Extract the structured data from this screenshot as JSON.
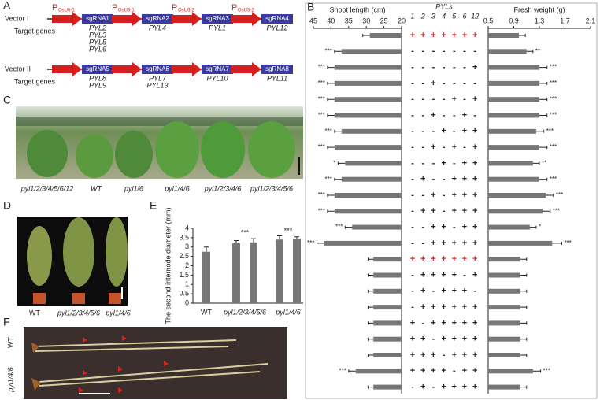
{
  "panel_labels": [
    "A",
    "B",
    "C",
    "D",
    "E",
    "F"
  ],
  "panel_a": {
    "promoter_letter": "P",
    "target_label": "Target genes",
    "vectors": [
      {
        "name": "Vector I",
        "promoters": [
          "OsU6-1",
          "OsU3-1",
          "OsU6-2",
          "OsU3-2"
        ],
        "sgrnas": [
          "sgRNA1",
          "sgRNA2",
          "sgRNA3",
          "sgRNA4"
        ],
        "targets": [
          [
            "PYL2",
            "PYL3",
            "PYL5",
            "PYL6"
          ],
          [
            "PYL4"
          ],
          [
            "PYL1"
          ],
          [
            "PYL12"
          ]
        ]
      },
      {
        "name": "Vector II",
        "sgrnas": [
          "sgRNA5",
          "sgRNA6",
          "sgRNA7",
          "sgRNA8"
        ],
        "targets": [
          [
            "PYL8",
            "PYL9"
          ],
          [
            "PYL7",
            "PYL13"
          ],
          [
            "PYL10"
          ],
          [
            "PYL11"
          ]
        ]
      }
    ]
  },
  "panel_b": {
    "labels": [
      "pyl1/2/3/4/5/6/12",
      "WT",
      "pyl1/6",
      "pyl1/4/6",
      "pyl1/2/3/4/6",
      "pyl1/2/3/4/5/6"
    ]
  },
  "panel_d": {
    "labels": [
      "WT",
      "pyl1/2/3/4/5/6",
      "pyl1/4/6"
    ]
  },
  "panel_f": {
    "labels": [
      "WT",
      "pyl1/4/6"
    ]
  },
  "panel_c": {
    "pyls_label": "PYLs",
    "columns": [
      1,
      2,
      3,
      4,
      5,
      6,
      12
    ],
    "rows": [
      {
        "color": "#d62020",
        "signs": [
          "+",
          "+",
          "+",
          "+",
          "+",
          "+",
          "+"
        ]
      },
      {
        "color": "#222222",
        "signs": [
          "-",
          "-",
          "-",
          "-",
          "-",
          "-",
          "-"
        ]
      },
      {
        "color": "#222222",
        "signs": [
          "-",
          "-",
          "-",
          "-",
          "-",
          "-",
          "+"
        ]
      },
      {
        "color": "#222222",
        "signs": [
          "-",
          "-",
          "+",
          "-",
          "-",
          "-",
          "-"
        ]
      },
      {
        "color": "#222222",
        "signs": [
          "-",
          "-",
          "-",
          "-",
          "+",
          "-",
          "+"
        ]
      },
      {
        "color": "#222222",
        "signs": [
          "-",
          "-",
          "+",
          "-",
          "-",
          "+",
          "-"
        ]
      },
      {
        "color": "#222222",
        "signs": [
          "-",
          "-",
          "-",
          "+",
          "-",
          "+",
          "+"
        ]
      },
      {
        "color": "#222222",
        "signs": [
          "-",
          "-",
          "+",
          "-",
          "+",
          "-",
          "+"
        ]
      },
      {
        "color": "#222222",
        "signs": [
          "-",
          "-",
          "-",
          "+",
          "-",
          "+",
          "+"
        ]
      },
      {
        "color": "#222222",
        "signs": [
          "-",
          "+",
          "-",
          "-",
          "+",
          "+",
          "+"
        ]
      },
      {
        "color": "#222222",
        "signs": [
          "-",
          "-",
          "+",
          "-",
          "+",
          "+",
          "+"
        ]
      },
      {
        "color": "#222222",
        "signs": [
          "-",
          "+",
          "+",
          "-",
          "+",
          "+",
          "+"
        ]
      },
      {
        "color": "#222222",
        "signs": [
          "-",
          "-",
          "+",
          "+",
          "-",
          "+",
          "+"
        ]
      },
      {
        "color": "#222222",
        "signs": [
          "-",
          "-",
          "+",
          "+",
          "+",
          "+",
          "+"
        ]
      },
      {
        "color": "#d62020",
        "signs": [
          "+",
          "+",
          "+",
          "+",
          "+",
          "+",
          "+"
        ]
      },
      {
        "color": "#222222",
        "signs": [
          "-",
          "+",
          "+",
          "+",
          "+",
          "-",
          "+"
        ]
      },
      {
        "color": "#222222",
        "signs": [
          "-",
          "+",
          "-",
          "+",
          "+",
          "+",
          "-"
        ]
      },
      {
        "color": "#222222",
        "signs": [
          "-",
          "+",
          "+",
          "+",
          "+",
          "+",
          "+"
        ]
      },
      {
        "color": "#222222",
        "signs": [
          "+",
          "-",
          "+",
          "+",
          "+",
          "+",
          "+"
        ]
      },
      {
        "color": "#222222",
        "signs": [
          "+",
          "+",
          "-",
          "+",
          "+",
          "+",
          "+"
        ]
      },
      {
        "color": "#222222",
        "signs": [
          "+",
          "+",
          "+",
          "-",
          "+",
          "+",
          "+"
        ]
      },
      {
        "color": "#222222",
        "signs": [
          "+",
          "+",
          "+",
          "+",
          "-",
          "+",
          "+"
        ]
      },
      {
        "color": "#222222",
        "signs": [
          "-",
          "+",
          "-",
          "+",
          "+",
          "+",
          "+"
        ]
      }
    ]
  },
  "chart_data": [
    {
      "type": "bar",
      "ylabel": "The second internode diameter (mm)",
      "categories": [
        "WT",
        "pyl1/2/3/4/5/6",
        null,
        "pyl1/4/6",
        null
      ],
      "values": [
        2.75,
        3.2,
        3.25,
        3.4,
        3.45
      ],
      "errors": [
        0.25,
        0.15,
        0.2,
        0.2,
        0.1
      ],
      "annotations": [
        null,
        null,
        "***",
        null,
        "***"
      ],
      "color": "#777777",
      "ylim": [
        0,
        4
      ],
      "yticks": [
        0,
        0.5,
        1,
        1.5,
        2,
        2.5,
        3,
        3.5,
        4
      ]
    },
    {
      "type": "barh",
      "xlabel": "Shoot length (cm)",
      "color": "#777777",
      "xlim": [
        45,
        20
      ],
      "xticks": [
        45,
        40,
        35,
        30,
        25,
        20
      ],
      "values": [
        29,
        37,
        39,
        39,
        39,
        39,
        37,
        39,
        36,
        37,
        39,
        39,
        34,
        42,
        28,
        28,
        28,
        28,
        28,
        28,
        28,
        33,
        28
      ],
      "errors": [
        2,
        2,
        2,
        2,
        2,
        2,
        2,
        2,
        2,
        2,
        2,
        2,
        2,
        2,
        1.5,
        1.5,
        1.5,
        1.5,
        1.5,
        1.5,
        1.5,
        2,
        1.5
      ],
      "sig": [
        null,
        "***",
        "***",
        "***",
        "***",
        "***",
        "***",
        "***",
        "*",
        "***",
        "***",
        "***",
        "***",
        "***",
        null,
        null,
        null,
        null,
        null,
        null,
        null,
        "***",
        null
      ]
    },
    {
      "type": "barh",
      "xlabel": "Fresh weight (g)",
      "color": "#777777",
      "xlim": [
        0.5,
        2.1
      ],
      "xticks": [
        0.5,
        0.9,
        1.3,
        1.7,
        2.1
      ],
      "values": [
        0.98,
        1.1,
        1.3,
        1.3,
        1.3,
        1.3,
        1.25,
        1.3,
        1.2,
        1.3,
        1.4,
        1.35,
        1.15,
        1.5,
        1.0,
        1.0,
        1.0,
        1.0,
        1.0,
        1.0,
        1.0,
        1.2,
        1.0
      ],
      "errors": [
        0.1,
        0.1,
        0.12,
        0.12,
        0.12,
        0.12,
        0.12,
        0.12,
        0.1,
        0.12,
        0.12,
        0.12,
        0.1,
        0.15,
        0.1,
        0.1,
        0.1,
        0.1,
        0.1,
        0.1,
        0.1,
        0.12,
        0.1
      ],
      "sig": [
        null,
        "**",
        "***",
        "***",
        "***",
        "***",
        "***",
        "***",
        "**",
        "***",
        "***",
        "***",
        "*",
        "***",
        null,
        null,
        null,
        null,
        null,
        null,
        null,
        "***",
        null
      ]
    }
  ]
}
